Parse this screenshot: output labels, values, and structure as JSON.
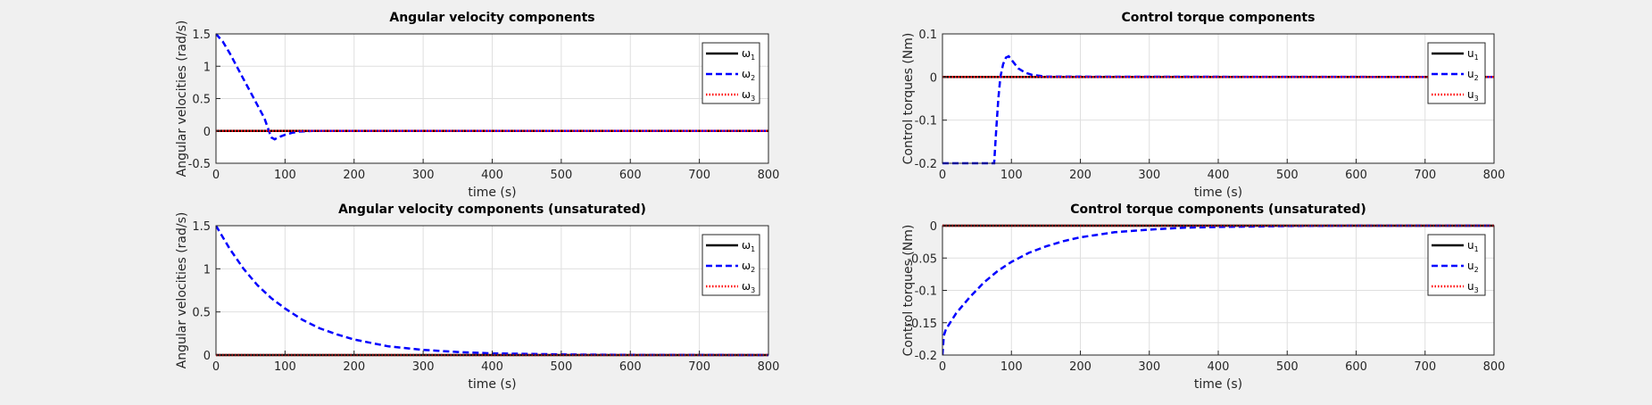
{
  "figure": {
    "background": "#f0f0f0"
  },
  "chart_data": [
    {
      "type": "line",
      "title": "Angular velocity components",
      "xlabel": "time (s)",
      "ylabel": "Angular velocities (rad/s)",
      "xlim": [
        0,
        800
      ],
      "ylim": [
        -0.5,
        1.5
      ],
      "xticks": [
        0,
        100,
        200,
        300,
        400,
        500,
        600,
        700,
        800
      ],
      "yticks": [
        -0.5,
        0,
        0.5,
        1,
        1.5
      ],
      "ytick_labels": [
        "-0.5",
        "0",
        "0.5",
        "1",
        "1.5"
      ],
      "grid": true,
      "legend_position": "top-right",
      "series": [
        {
          "name": "ω1",
          "symbol": "ω",
          "subscript": "1",
          "color": "#000000",
          "style": "solid",
          "x": [
            0,
            800
          ],
          "y": [
            0,
            0
          ]
        },
        {
          "name": "ω2",
          "symbol": "ω",
          "subscript": "2",
          "color": "#0000ff",
          "style": "dashed",
          "x": [
            0,
            10,
            20,
            30,
            40,
            50,
            60,
            70,
            75,
            80,
            85,
            90,
            100,
            110,
            120,
            140,
            160,
            200,
            800
          ],
          "y": [
            1.5,
            1.38,
            1.2,
            1.0,
            0.8,
            0.6,
            0.4,
            0.2,
            0.05,
            -0.1,
            -0.13,
            -0.1,
            -0.06,
            -0.03,
            -0.01,
            0,
            0,
            0,
            0
          ]
        },
        {
          "name": "ω3",
          "symbol": "ω",
          "subscript": "3",
          "color": "#ff0000",
          "style": "dotted",
          "x": [
            0,
            800
          ],
          "y": [
            0,
            0
          ]
        }
      ]
    },
    {
      "type": "line",
      "title": "Control torque components",
      "xlabel": "time (s)",
      "ylabel": "Control torques (Nm)",
      "xlim": [
        0,
        800
      ],
      "ylim": [
        -0.2,
        0.1
      ],
      "xticks": [
        0,
        100,
        200,
        300,
        400,
        500,
        600,
        700,
        800
      ],
      "yticks": [
        -0.2,
        -0.1,
        0,
        0.1
      ],
      "ytick_labels": [
        "-0.2",
        "-0.1",
        "0",
        "0.1"
      ],
      "grid": true,
      "legend_position": "top-right",
      "series": [
        {
          "name": "u1",
          "symbol": "u",
          "subscript": "1",
          "color": "#000000",
          "style": "solid",
          "x": [
            0,
            800
          ],
          "y": [
            0,
            0
          ]
        },
        {
          "name": "u2",
          "symbol": "u",
          "subscript": "2",
          "color": "#0000ff",
          "style": "dashed",
          "x": [
            0,
            75,
            78,
            81,
            84,
            88,
            92,
            96,
            100,
            105,
            110,
            120,
            130,
            150,
            800
          ],
          "y": [
            -0.2,
            -0.2,
            -0.12,
            -0.05,
            0.0,
            0.03,
            0.045,
            0.048,
            0.04,
            0.03,
            0.02,
            0.01,
            0.005,
            0.001,
            0
          ]
        },
        {
          "name": "u3",
          "symbol": "u",
          "subscript": "3",
          "color": "#ff0000",
          "style": "dotted",
          "x": [
            0,
            800
          ],
          "y": [
            0,
            0
          ]
        }
      ]
    },
    {
      "type": "line",
      "title": "Angular velocity components (unsaturated)",
      "xlabel": "time (s)",
      "ylabel": "Angular velocities (rad/s)",
      "xlim": [
        0,
        800
      ],
      "ylim": [
        0,
        1.5
      ],
      "xticks": [
        0,
        100,
        200,
        300,
        400,
        500,
        600,
        700,
        800
      ],
      "yticks": [
        0,
        0.5,
        1,
        1.5
      ],
      "ytick_labels": [
        "0",
        "0.5",
        "1",
        "1.5"
      ],
      "grid": true,
      "legend_position": "top-right",
      "series": [
        {
          "name": "ω1",
          "symbol": "ω",
          "subscript": "1",
          "color": "#000000",
          "style": "solid",
          "x": [
            0,
            800
          ],
          "y": [
            0,
            0
          ]
        },
        {
          "name": "ω2",
          "symbol": "ω",
          "subscript": "2",
          "color": "#0000ff",
          "style": "dashed",
          "x": [
            0,
            20,
            40,
            60,
            80,
            100,
            125,
            150,
            175,
            200,
            250,
            300,
            350,
            400,
            500,
            600,
            800
          ],
          "y": [
            1.5,
            1.23,
            1.0,
            0.81,
            0.66,
            0.54,
            0.41,
            0.31,
            0.24,
            0.18,
            0.1,
            0.06,
            0.035,
            0.02,
            0.007,
            0.002,
            0
          ]
        },
        {
          "name": "ω3",
          "symbol": "ω",
          "subscript": "3",
          "color": "#ff0000",
          "style": "dotted",
          "x": [
            0,
            800
          ],
          "y": [
            0,
            0
          ]
        }
      ]
    },
    {
      "type": "line",
      "title": "Control torque components (unsaturated)",
      "xlabel": "time (s)",
      "ylabel": "Control torques (Nm)",
      "xlim": [
        0,
        800
      ],
      "ylim": [
        -0.2,
        0
      ],
      "xticks": [
        0,
        100,
        200,
        300,
        400,
        500,
        600,
        700,
        800
      ],
      "yticks": [
        -0.2,
        -0.15,
        -0.1,
        -0.05,
        0
      ],
      "ytick_labels": [
        "-0.2",
        "-0.15",
        "-0.1",
        "-0.05",
        "0"
      ],
      "grid": true,
      "legend_position": "top-right",
      "series": [
        {
          "name": "u1",
          "symbol": "u",
          "subscript": "1",
          "color": "#000000",
          "style": "solid",
          "x": [
            0,
            800
          ],
          "y": [
            0,
            0
          ]
        },
        {
          "name": "u2",
          "symbol": "u",
          "subscript": "2",
          "color": "#0000ff",
          "style": "dashed",
          "x": [
            0,
            2,
            5,
            10,
            20,
            40,
            60,
            80,
            100,
            125,
            150,
            175,
            200,
            250,
            300,
            350,
            400,
            500,
            600,
            800
          ],
          "y": [
            -0.2,
            -0.17,
            -0.16,
            -0.152,
            -0.135,
            -0.11,
            -0.088,
            -0.07,
            -0.056,
            -0.042,
            -0.032,
            -0.024,
            -0.018,
            -0.01,
            -0.006,
            -0.003,
            -0.002,
            -0.0005,
            0,
            0
          ]
        },
        {
          "name": "u3",
          "symbol": "u",
          "subscript": "3",
          "color": "#ff0000",
          "style": "dotted",
          "x": [
            0,
            800
          ],
          "y": [
            0,
            0
          ]
        }
      ]
    }
  ]
}
